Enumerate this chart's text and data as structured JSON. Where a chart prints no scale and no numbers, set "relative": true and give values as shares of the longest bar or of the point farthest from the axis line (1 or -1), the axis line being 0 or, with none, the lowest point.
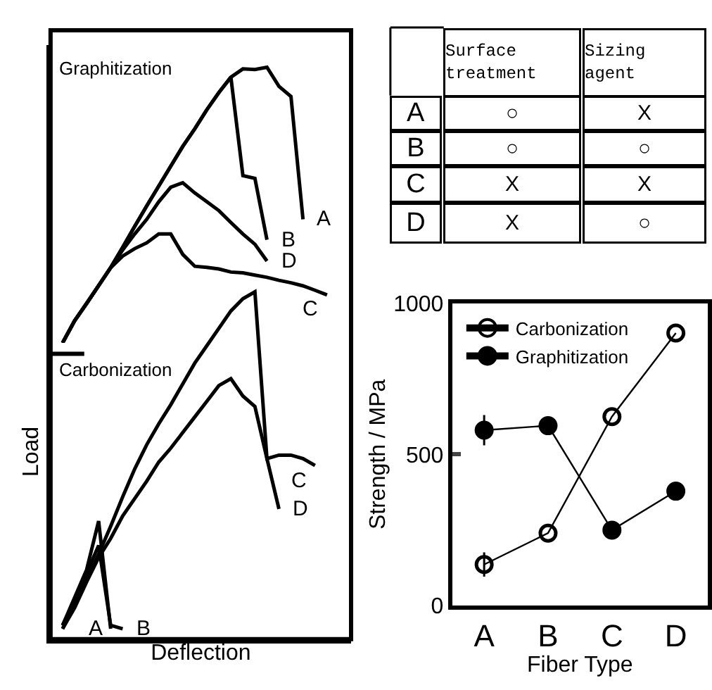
{
  "chart_data": [
    {
      "type": "line",
      "title": "Graphitization",
      "relative": true,
      "categories": [
        null,
        null,
        null,
        null,
        null,
        null,
        null,
        null,
        null,
        null,
        null,
        null,
        null,
        null,
        null,
        null,
        null,
        null,
        null,
        null,
        null,
        null,
        null,
        null,
        null,
        null
      ],
      "series": [
        {
          "name": "A",
          "color": "#000000",
          "values": [
            null,
            0,
            0.08,
            0.143,
            0.208,
            0.273,
            0.347,
            0.423,
            0.497,
            0.569,
            0.641,
            0.713,
            0.777,
            0.846,
            0.908,
            0.964,
            0.994,
            0.992,
            1,
            0.931,
            0.894,
            0.448,
            null,
            null,
            null,
            null
          ]
        },
        {
          "name": "B",
          "color": "#000000",
          "values": [
            null,
            0,
            0.08,
            0.143,
            0.208,
            0.273,
            0.347,
            0.423,
            0.497,
            0.569,
            0.641,
            0.713,
            0.777,
            0.846,
            0.908,
            0.964,
            0.607,
            0.597,
            0.374,
            null,
            null,
            null,
            null,
            null,
            null,
            null
          ]
        },
        {
          "name": "C",
          "color": "#000000",
          "values": [
            null,
            0,
            0.08,
            0.143,
            0.208,
            0.273,
            0.315,
            0.342,
            0.363,
            0.395,
            0.395,
            0.321,
            0.278,
            0.274,
            0.268,
            0.257,
            0.254,
            0.246,
            0.238,
            0.227,
            0.218,
            0.207,
            0.191,
            0.174,
            null,
            null
          ]
        },
        {
          "name": "D",
          "color": "#000000",
          "values": [
            null,
            0,
            0.08,
            0.143,
            0.208,
            0.273,
            0.337,
            0.395,
            0.448,
            0.512,
            0.565,
            0.581,
            0.544,
            0.512,
            0.48,
            0.437,
            0.395,
            0.358,
            0.297,
            null,
            null,
            null,
            null,
            null,
            null,
            null
          ]
        }
      ]
    },
    {
      "type": "line",
      "title": "Carbonization",
      "xlabel": "Deflection",
      "ylabel": "Load",
      "relative": true,
      "categories": [
        null,
        null,
        null,
        null,
        null,
        null,
        null,
        null,
        null,
        null,
        null,
        null,
        null,
        null,
        null,
        null,
        null,
        null,
        null,
        null,
        null,
        null,
        null,
        null,
        null,
        null
      ],
      "series": [
        {
          "name": "A",
          "color": "#000000",
          "values": [
            null,
            0.04,
            0.12,
            0.2,
            0.34,
            0.03,
            null,
            null,
            null,
            null,
            null,
            null,
            null,
            null,
            null,
            null,
            null,
            null,
            null,
            null,
            null,
            null,
            null,
            null,
            null,
            null
          ]
        },
        {
          "name": "B",
          "color": "#000000",
          "values": [
            null,
            0.04,
            0.11,
            0.19,
            0.27,
            0.04,
            0.03,
            null,
            null,
            null,
            null,
            null,
            null,
            null,
            null,
            null,
            null,
            null,
            null,
            null,
            null,
            null,
            null,
            null,
            null,
            null
          ]
        },
        {
          "name": "C",
          "color": "#000000",
          "values": [
            null,
            0.03,
            0.09,
            0.165,
            0.235,
            0.29,
            0.355,
            0.405,
            0.455,
            0.51,
            0.55,
            0.595,
            0.64,
            0.685,
            0.73,
            0.75,
            0.7,
            0.67,
            0.52,
            0.53,
            0.53,
            0.52,
            0.5,
            null,
            null,
            null
          ]
        },
        {
          "name": "D",
          "color": "#000000",
          "values": [
            null,
            0.03,
            0.1,
            0.17,
            0.245,
            0.325,
            0.41,
            0.49,
            0.56,
            0.62,
            0.675,
            0.735,
            0.795,
            0.845,
            0.895,
            0.945,
            0.98,
            1.0,
            0.52,
            0.375,
            null,
            null,
            null,
            null,
            null,
            null
          ]
        }
      ]
    },
    {
      "type": "other",
      "categories": [
        "Surface treatment",
        "Sizing agent"
      ],
      "y_categories": [
        "A",
        "B",
        "C",
        "D"
      ],
      "cell_labels": [
        [
          "○",
          "X"
        ],
        [
          "○",
          "○"
        ],
        [
          "X",
          "X"
        ],
        [
          "X",
          "○"
        ]
      ]
    },
    {
      "type": "line",
      "xlabel": "Fiber Type",
      "ylabel": "Strength / MPa",
      "categories": [
        "A",
        "B",
        "C",
        "D"
      ],
      "ylim": [
        0,
        1000
      ],
      "yticks": [
        0,
        500,
        1000
      ],
      "legend": "top left",
      "series": [
        {
          "name": "Carbonization",
          "color": "#000000",
          "marker": "circle-open",
          "values": [
            135,
            239,
            625,
            902
          ],
          "errors": [
            40,
            null,
            null,
            null
          ]
        },
        {
          "name": "Graphitization",
          "color": "#000000",
          "marker": "circle",
          "values": [
            580,
            595,
            249,
            378
          ],
          "errors": [
            50,
            null,
            null,
            null
          ]
        }
      ]
    }
  ]
}
